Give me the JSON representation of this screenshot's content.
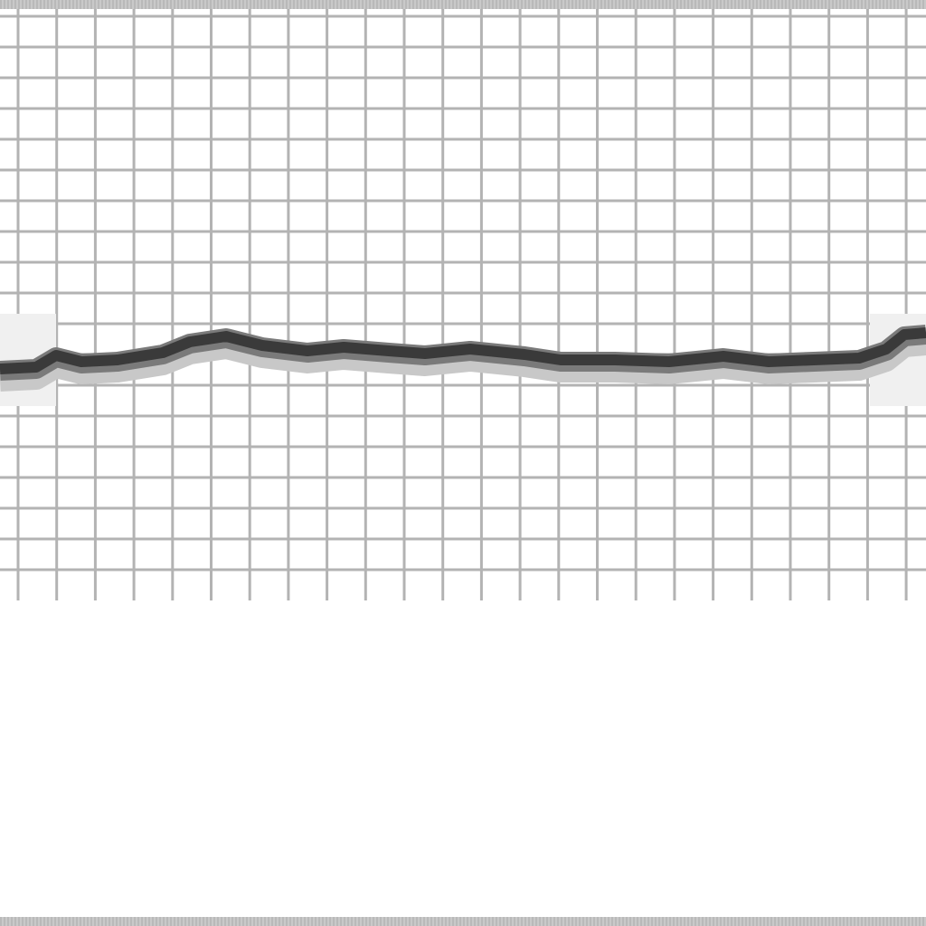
{
  "scene": {
    "colors": {
      "background": "#ffffff",
      "grid_line": "#b3b3b3",
      "border": "#bdbdbd",
      "strip_dark": "#3a3a3a",
      "strip_mid": "#7a7a7a",
      "strip_light": "#c8c8c8",
      "end_cap": "#f0f0f0"
    },
    "texture": "grid-with-wavy-dark-strip"
  }
}
